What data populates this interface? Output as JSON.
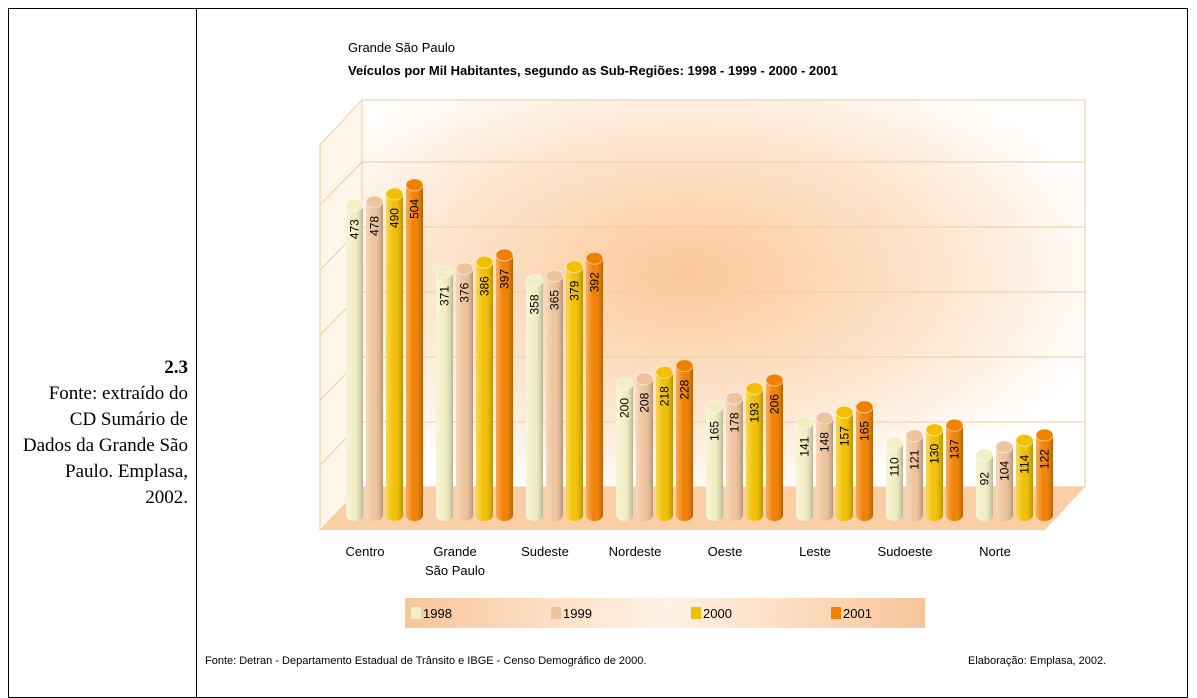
{
  "caption": {
    "number": "2.3",
    "text": "Fonte: extraído do CD Sumário de Dados da Grande São Paulo. Emplasa, 2002."
  },
  "chart_data": {
    "type": "bar",
    "subtitle": "Grande São Paulo",
    "title": "Veículos por Mil Habitantes, segundo as Sub-Regiões: 1998 - 1999 - 2000 - 2001",
    "categories": [
      "Centro",
      "Grande São Paulo",
      "Sudeste",
      "Nordeste",
      "Oeste",
      "Leste",
      "Sudoeste",
      "Norte"
    ],
    "ylim": [
      0,
      600
    ],
    "series": [
      {
        "name": "1998",
        "color": "#f3efc4",
        "values": [
          473,
          371,
          358,
          200,
          165,
          141,
          110,
          92
        ]
      },
      {
        "name": "1999",
        "color": "#efc39b",
        "values": [
          478,
          376,
          365,
          208,
          178,
          148,
          121,
          104
        ]
      },
      {
        "name": "2000",
        "color": "#f2c000",
        "values": [
          490,
          386,
          379,
          218,
          193,
          157,
          130,
          114
        ]
      },
      {
        "name": "2001",
        "color": "#f28000",
        "values": [
          504,
          397,
          392,
          228,
          206,
          165,
          137,
          122
        ]
      }
    ],
    "source": "Fonte: Detran - Departamento Estadual de Trânsito e IBGE - Censo Demográfico de 2000.",
    "credit": "Elaboração: Emplasa, 2002."
  }
}
